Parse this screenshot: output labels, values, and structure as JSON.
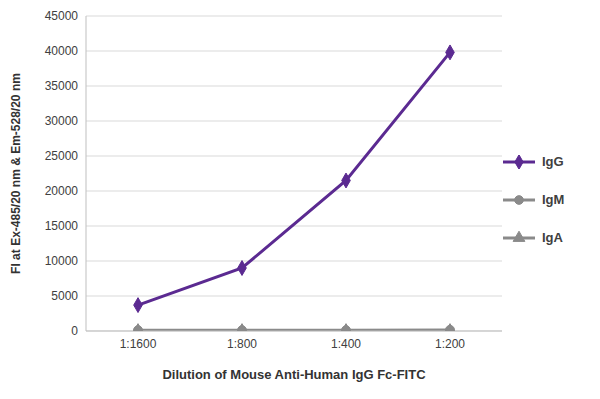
{
  "chart_data": {
    "type": "line",
    "x_label": "Dilution of Mouse Anti-Human IgG Fc-FITC",
    "y_label": "FI at Ex-485/20 nm & Em-528/20 nm",
    "categories": [
      "1:1600",
      "1:800",
      "1:400",
      "1:200"
    ],
    "series": [
      {
        "name": "IgG",
        "color": "#5b2a91",
        "marker": "diamond",
        "values": [
          3700,
          9000,
          21500,
          39800
        ]
      },
      {
        "name": "IgM",
        "color": "#8a8a8a",
        "marker": "circle",
        "values": [
          100,
          100,
          100,
          150
        ]
      },
      {
        "name": "IgA",
        "color": "#8a8a8a",
        "marker": "triangle",
        "values": [
          50,
          50,
          50,
          50
        ]
      }
    ],
    "ylim": [
      0,
      45000
    ],
    "yticks": [
      0,
      5000,
      10000,
      15000,
      20000,
      25000,
      30000,
      35000,
      40000,
      45000
    ],
    "grid": true,
    "legend": "right"
  }
}
